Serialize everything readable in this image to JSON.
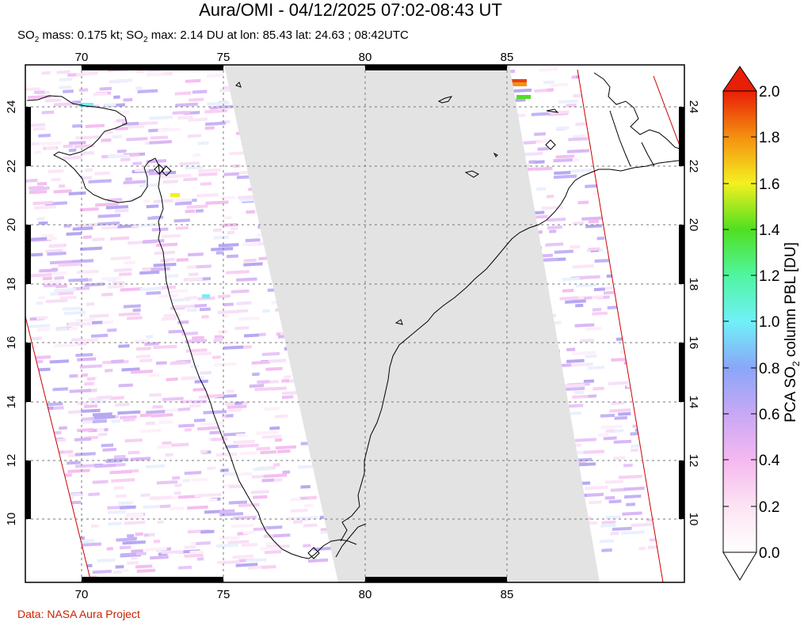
{
  "title": "Aura/OMI - 04/12/2025 07:02-08:43 UT",
  "subtitle": {
    "part1": "SO",
    "sub1": "2",
    "part2": " mass: 0.175 kt; SO",
    "sub2": "2",
    "part3": " max: 2.14 DU at lon: 85.43 lat: 24.63 ; 08:42UTC"
  },
  "credit": "Data: NASA Aura Project",
  "map": {
    "lon_ticks": [
      "70",
      "75",
      "80",
      "85"
    ],
    "lat_ticks": [
      "10",
      "12",
      "14",
      "16",
      "18",
      "20",
      "22",
      "24"
    ],
    "lon_range": [
      68,
      91
    ],
    "lat_range": [
      8,
      25
    ],
    "colors": {
      "no_data": "#e3e3e3",
      "coast": "#000000",
      "swath_edge": "#cc0000",
      "grid": "#777777"
    }
  },
  "colorbar": {
    "label_main": "PCA SO",
    "label_sub": "2",
    "label_tail": " column PBL [DU]",
    "ticks": [
      "2.0",
      "1.8",
      "1.6",
      "1.4",
      "1.2",
      "1.0",
      "0.8",
      "0.6",
      "0.4",
      "0.2",
      "0.0"
    ],
    "range": [
      0,
      2.0
    ]
  }
}
